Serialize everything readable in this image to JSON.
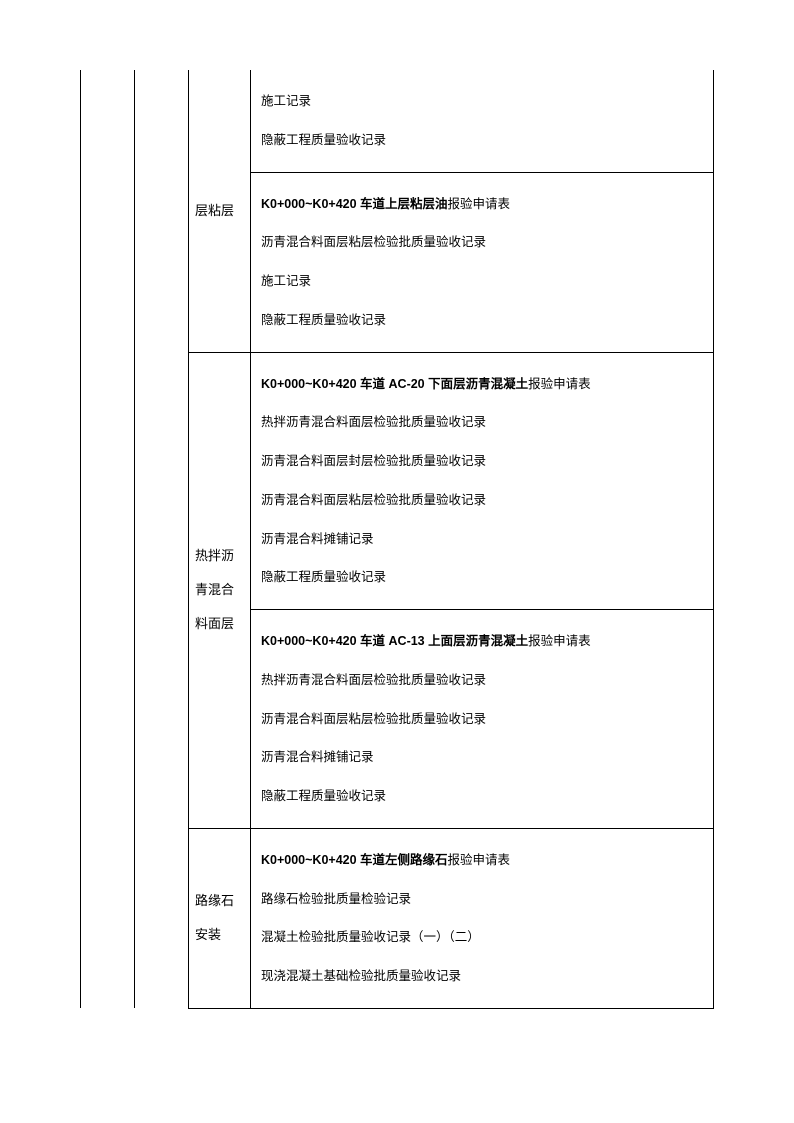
{
  "table": {
    "rows": [
      {
        "col3_label": "层粘层",
        "col3_rowspan": 2,
        "col3_border_top": false,
        "content": [
          {
            "text": "施工记录",
            "bold": false
          },
          {
            "text": "隐蔽工程质量验收记录",
            "bold": false
          }
        ]
      },
      {
        "content": [
          {
            "text": "K0+000~K0+420 车道上层粘层油报验申请表",
            "bold": true
          },
          {
            "text": "沥青混合料面层粘层检验批质量验收记录",
            "bold": false
          },
          {
            "text": "施工记录",
            "bold": false
          },
          {
            "text": "隐蔽工程质量验收记录",
            "bold": false
          }
        ]
      },
      {
        "col3_label": "热拌沥青混合料面层",
        "col3_rowspan": 2,
        "content": [
          {
            "text": "K0+000~K0+420 车道 AC-20 下面层沥青混凝土报验申请表",
            "bold": true
          },
          {
            "text": "热拌沥青混合料面层检验批质量验收记录",
            "bold": false
          },
          {
            "text": "沥青混合料面层封层检验批质量验收记录",
            "bold": false
          },
          {
            "text": "沥青混合料面层粘层检验批质量验收记录",
            "bold": false
          },
          {
            "text": "沥青混合料摊铺记录",
            "bold": false
          },
          {
            "text": "隐蔽工程质量验收记录",
            "bold": false
          }
        ]
      },
      {
        "content": [
          {
            "text": "K0+000~K0+420 车道 AC-13 上面层沥青混凝土报验申请表",
            "bold": true
          },
          {
            "text": "热拌沥青混合料面层检验批质量验收记录",
            "bold": false
          },
          {
            "text": "沥青混合料面层粘层检验批质量验收记录",
            "bold": false
          },
          {
            "text": "沥青混合料摊铺记录",
            "bold": false
          },
          {
            "text": "隐蔽工程质量验收记录",
            "bold": false
          }
        ]
      },
      {
        "col3_label": "路缘石安装",
        "col3_rowspan": 1,
        "content": [
          {
            "text": "K0+000~K0+420 车道左侧路缘石报验申请表",
            "bold": true
          },
          {
            "text": "路缘石检验批质量检验记录",
            "bold": false
          },
          {
            "text": "混凝土检验批质量验收记录（一）（二）",
            "bold": false
          },
          {
            "text": "现浇混凝土基础检验批质量验收记录",
            "bold": false
          }
        ]
      }
    ],
    "colors": {
      "border": "#000000",
      "background": "#ffffff",
      "text": "#000000"
    },
    "fonts": {
      "body_size": 12.5,
      "label_size": 13,
      "line_height": 3.1
    }
  }
}
